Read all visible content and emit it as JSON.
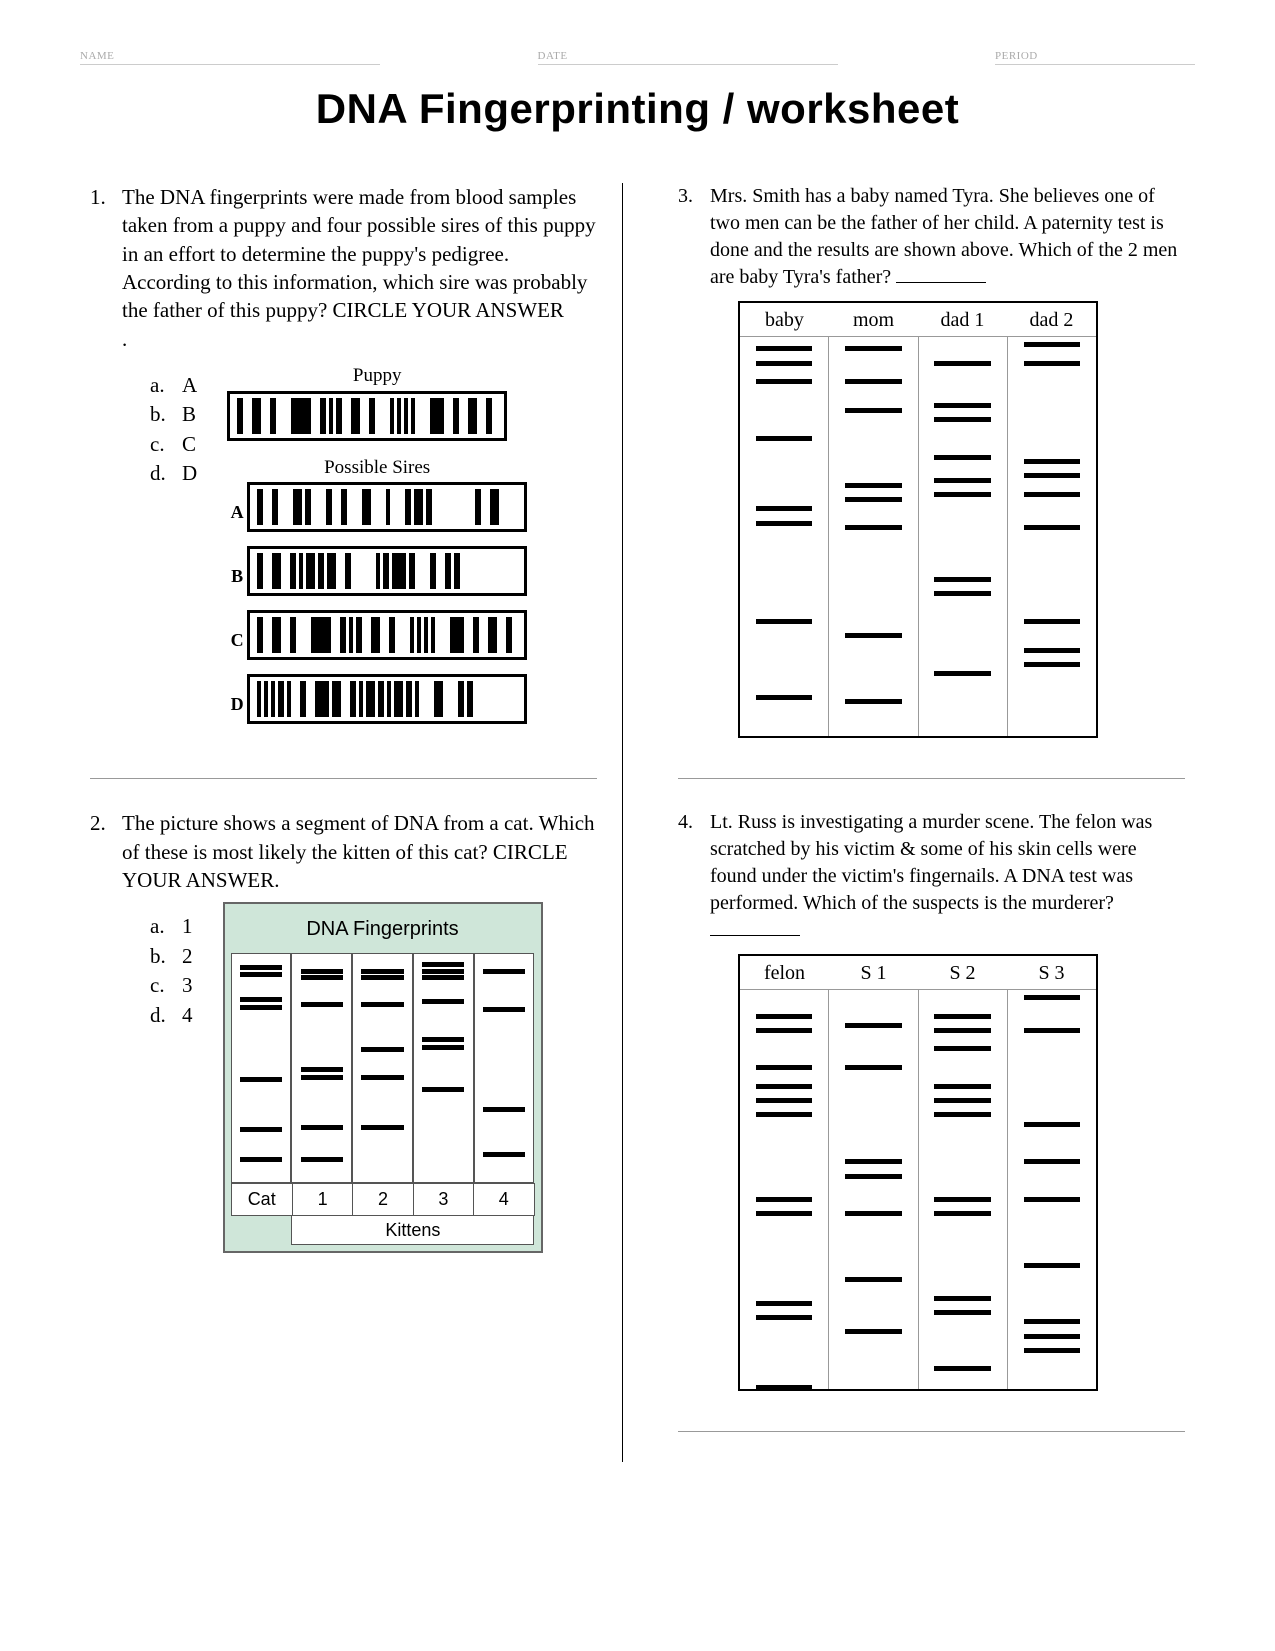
{
  "header": {
    "name_label": "NAME",
    "date_label": "DATE",
    "period_label": "PERIOD"
  },
  "title": "DNA Fingerprinting / worksheet",
  "q1": {
    "number": "1.",
    "text": "The DNA fingerprints were made from blood samples taken from a puppy and four possible sires of this puppy in an effort to determine the puppy's pedigree. According to this information, which sire was probably the father of this puppy?  CIRCLE YOUR ANSWER",
    "dot": ".",
    "choices": [
      {
        "letter": "a.",
        "label": "A"
      },
      {
        "letter": "b.",
        "label": "B"
      },
      {
        "letter": "c.",
        "label": "C"
      },
      {
        "letter": "d.",
        "label": "D"
      }
    ],
    "fig": {
      "puppy_label": "Puppy",
      "sires_label": "Possible Sires",
      "lane_labels": [
        "A",
        "B",
        "C",
        "D"
      ]
    }
  },
  "q2": {
    "number": "2.",
    "text": "The picture shows a segment of DNA from a cat. Which of these is most likely the kitten of this cat? CIRCLE YOUR ANSWER.",
    "choices": [
      {
        "letter": "a.",
        "label": "1"
      },
      {
        "letter": "b.",
        "label": "2"
      },
      {
        "letter": "c.",
        "label": "3"
      },
      {
        "letter": "d.",
        "label": "4"
      }
    ],
    "fig": {
      "title": "DNA Fingerprints",
      "row_labels": [
        "Cat",
        "1",
        "2",
        "3",
        "4"
      ],
      "sublabel": "Kittens",
      "bands": {
        "cat": [
          8,
          15,
          40,
          48,
          120,
          170,
          200
        ],
        "k1": [
          12,
          18,
          45,
          110,
          118,
          168,
          200
        ],
        "k2": [
          12,
          18,
          45,
          90,
          118,
          168
        ],
        "k3": [
          5,
          12,
          18,
          42,
          80,
          88,
          130
        ],
        "k4": [
          12,
          50,
          150,
          195
        ]
      }
    }
  },
  "q3": {
    "number": "3.",
    "text": "Mrs. Smith has a baby named Tyra. She believes one of two men can be the father of her child.  A paternity test is done and the results are shown above.  Which of the 2 men are baby Tyra's father?",
    "headers": [
      "baby",
      "mom",
      "dad 1",
      "dad 2"
    ],
    "bands": {
      "baby": [
        4,
        10,
        18,
        42,
        72,
        78,
        120,
        152
      ],
      "mom": [
        4,
        18,
        30,
        62,
        68,
        80,
        126,
        154
      ],
      "dad1": [
        10,
        28,
        34,
        50,
        60,
        66,
        102,
        108,
        142
      ],
      "dad2": [
        2,
        10,
        52,
        58,
        66,
        80,
        120,
        132,
        138
      ]
    }
  },
  "q4": {
    "number": "4.",
    "text": "Lt. Russ is investigating a murder scene.  The felon was scratched by his victim & some of his skin cells were found under the victim's fingernails.  A DNA test was performed. Which of the suspects is the murderer?",
    "headers": [
      "felon",
      "S 1",
      "S 2",
      "S 3"
    ],
    "bands": {
      "felon": [
        10,
        16,
        32,
        40,
        46,
        52,
        88,
        94,
        132,
        138,
        168
      ],
      "s1": [
        14,
        32,
        72,
        78,
        94,
        122,
        144
      ],
      "s2": [
        10,
        16,
        24,
        40,
        46,
        52,
        88,
        94,
        130,
        136,
        160
      ],
      "s3": [
        2,
        16,
        56,
        72,
        88,
        116,
        140,
        146,
        152
      ]
    }
  },
  "colors": {
    "text": "#000000",
    "header_text": "#aaaaaa",
    "rule": "#999999",
    "q2_bg": "#cfe6d9",
    "band": "#000000"
  }
}
